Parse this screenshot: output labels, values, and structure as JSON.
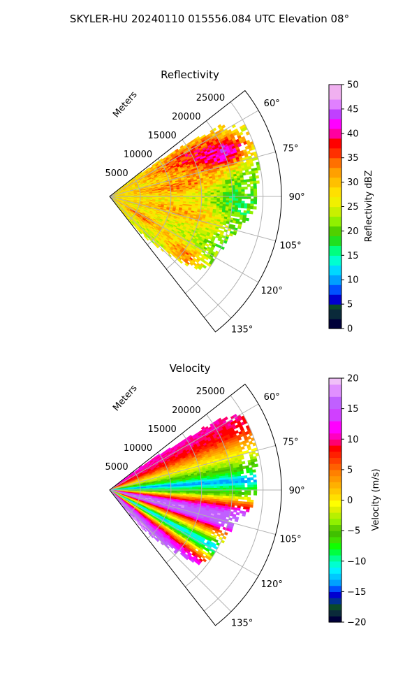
{
  "figure": {
    "suptitle": "SKYLER-HU  20240110  015556.084 UTC Elevation 08°"
  },
  "chart_data": [
    {
      "type": "heatmap",
      "projection": "polar-sector",
      "title": "Reflectivity",
      "radial_label": "Meters",
      "range_ticks": [
        5000,
        10000,
        15000,
        20000,
        25000
      ],
      "range_tick_labels": [
        "5000",
        "10000",
        "15000",
        "20000",
        "25000"
      ],
      "rlim": [
        0,
        28000
      ],
      "azimuth_range": [
        52,
        142
      ],
      "azimuth_ticks": [
        60,
        75,
        90,
        105,
        120,
        135
      ],
      "azimuth_tick_labels": [
        "60°",
        "75°",
        "90°",
        "105°",
        "120°",
        "135°"
      ],
      "grid": true,
      "colorbar": {
        "label": "Reflectivity dBZ",
        "range": [
          0,
          50
        ],
        "ticks": [
          0,
          5,
          10,
          15,
          20,
          25,
          30,
          35,
          40,
          45,
          50
        ],
        "tick_labels": [
          "0",
          "5",
          "10",
          "15",
          "20",
          "25",
          "30",
          "35",
          "40",
          "45",
          "50"
        ],
        "colors": [
          [
            0,
            "#00003a"
          ],
          [
            2,
            "#0a2a3a"
          ],
          [
            4,
            "#0a4a2a"
          ],
          [
            5,
            "#0000d0"
          ],
          [
            7,
            "#0050ff"
          ],
          [
            9,
            "#00a0ff"
          ],
          [
            11,
            "#00d8ff"
          ],
          [
            13,
            "#00ffd0"
          ],
          [
            15,
            "#00ff80"
          ],
          [
            17,
            "#20e020"
          ],
          [
            19,
            "#50d000"
          ],
          [
            21,
            "#90f000"
          ],
          [
            23,
            "#c8f000"
          ],
          [
            25,
            "#f0f000"
          ],
          [
            27,
            "#ffe000"
          ],
          [
            29,
            "#ffc000"
          ],
          [
            31,
            "#ffa000"
          ],
          [
            33,
            "#ff7000"
          ],
          [
            35,
            "#ff3000"
          ],
          [
            37,
            "#ff0000"
          ],
          [
            39,
            "#ff00a0"
          ],
          [
            41,
            "#ff00ff"
          ],
          [
            43,
            "#c040ff"
          ],
          [
            45,
            "#e080ff"
          ],
          [
            47,
            "#f0b0f0"
          ],
          [
            50,
            "#ffe0ff"
          ]
        ]
      },
      "field": {
        "max_range": [
          [
            52,
            0
          ],
          [
            57,
            20500
          ],
          [
            60,
            24500
          ],
          [
            64,
            25000
          ],
          [
            68,
            25000
          ],
          [
            72,
            25000
          ],
          [
            76,
            24800
          ],
          [
            80,
            24500
          ],
          [
            85,
            24000
          ],
          [
            90,
            24000
          ],
          [
            95,
            23500
          ],
          [
            100,
            22500
          ],
          [
            105,
            21500
          ],
          [
            110,
            20500
          ],
          [
            115,
            20000
          ],
          [
            120,
            20000
          ],
          [
            125,
            19500
          ],
          [
            130,
            18500
          ],
          [
            135,
            13000
          ],
          [
            140,
            8000
          ],
          [
            142,
            0
          ]
        ],
        "base_value": 27,
        "features": [
          {
            "azimuth": 62,
            "range": 14000,
            "amplitude": 10,
            "azimuth_width": 9,
            "range_width": 9000
          },
          {
            "azimuth": 70,
            "range": 21000,
            "amplitude": 13,
            "azimuth_width": 6,
            "range_width": 4000
          },
          {
            "azimuth": 70,
            "range": 17000,
            "amplitude": 7,
            "azimuth_width": 10,
            "range_width": 6000
          },
          {
            "azimuth": 82,
            "range": 11000,
            "amplitude": 8,
            "azimuth_width": 7,
            "range_width": 8000
          },
          {
            "azimuth": 102,
            "range": 13000,
            "amplitude": 7,
            "azimuth_width": 8,
            "range_width": 9000
          },
          {
            "azimuth": 122,
            "range": 6000,
            "amplitude": 8,
            "azimuth_width": 6,
            "range_width": 5000
          },
          {
            "azimuth": 128,
            "range": 15500,
            "amplitude": 10,
            "azimuth_width": 6,
            "range_width": 4000
          },
          {
            "azimuth": 95,
            "range": 20500,
            "amplitude": -5,
            "azimuth_width": 14,
            "range_width": 3500
          }
        ],
        "range_trend": -0.00025,
        "noise": 7
      }
    },
    {
      "type": "heatmap",
      "projection": "polar-sector",
      "title": "Velocity",
      "radial_label": "Meters",
      "range_ticks": [
        5000,
        10000,
        15000,
        20000,
        25000
      ],
      "range_tick_labels": [
        "5000",
        "10000",
        "15000",
        "20000",
        "25000"
      ],
      "rlim": [
        0,
        28000
      ],
      "azimuth_range": [
        52,
        142
      ],
      "azimuth_ticks": [
        60,
        75,
        90,
        105,
        120,
        135
      ],
      "azimuth_tick_labels": [
        "60°",
        "75°",
        "90°",
        "105°",
        "120°",
        "135°"
      ],
      "grid": true,
      "colorbar": {
        "label": "Velocity (m/s)",
        "range": [
          -20,
          20
        ],
        "ticks": [
          -20,
          -15,
          -10,
          -5,
          0,
          5,
          10,
          15,
          20
        ],
        "tick_labels": [
          "−20",
          "−15",
          "−10",
          "−5",
          "0",
          "5",
          "10",
          "15",
          "20"
        ],
        "colors": [
          [
            -20,
            "#00003a"
          ],
          [
            -19,
            "#0a2a3a"
          ],
          [
            -18,
            "#0a4a2a"
          ],
          [
            -17,
            "#003090"
          ],
          [
            -16,
            "#0000d0"
          ],
          [
            -15,
            "#0050ff"
          ],
          [
            -14,
            "#00a0ff"
          ],
          [
            -13,
            "#00c8ff"
          ],
          [
            -12,
            "#00f0ff"
          ],
          [
            -11,
            "#00ffd0"
          ],
          [
            -10,
            "#00ff90"
          ],
          [
            -9,
            "#00ff40"
          ],
          [
            -8,
            "#10ff00"
          ],
          [
            -7,
            "#40e000"
          ],
          [
            -6,
            "#40c000"
          ],
          [
            -5,
            "#60d000"
          ],
          [
            -4,
            "#90f000"
          ],
          [
            -3,
            "#b8f000"
          ],
          [
            -2,
            "#e0f000"
          ],
          [
            -1,
            "#ffff00"
          ],
          [
            0,
            "#ffe000"
          ],
          [
            1,
            "#ffc800"
          ],
          [
            2,
            "#ffb000"
          ],
          [
            3,
            "#ff9800"
          ],
          [
            4,
            "#ff8000"
          ],
          [
            5,
            "#ff6000"
          ],
          [
            6,
            "#ff4000"
          ],
          [
            7,
            "#ff2000"
          ],
          [
            8,
            "#ff0000"
          ],
          [
            9,
            "#ff0070"
          ],
          [
            10,
            "#ff00c0"
          ],
          [
            11,
            "#ff00ff"
          ],
          [
            13,
            "#d040ff"
          ],
          [
            15,
            "#c060ff"
          ],
          [
            17,
            "#e090ff"
          ],
          [
            19,
            "#f0c0f8"
          ],
          [
            20,
            "#ffe0ff"
          ]
        ]
      },
      "field": {
        "max_range": [
          [
            52,
            0
          ],
          [
            57,
            20500
          ],
          [
            60,
            24500
          ],
          [
            64,
            25000
          ],
          [
            68,
            25000
          ],
          [
            72,
            25000
          ],
          [
            76,
            24800
          ],
          [
            80,
            24500
          ],
          [
            85,
            24000
          ],
          [
            90,
            24000
          ],
          [
            95,
            23500
          ],
          [
            100,
            22500
          ],
          [
            105,
            21500
          ],
          [
            110,
            20500
          ],
          [
            115,
            20000
          ],
          [
            120,
            20000
          ],
          [
            125,
            19500
          ],
          [
            130,
            18500
          ],
          [
            135,
            13000
          ],
          [
            140,
            8000
          ],
          [
            142,
            0
          ]
        ],
        "velocity_profile": [
          [
            52,
            11
          ],
          [
            60,
            10
          ],
          [
            66,
            8
          ],
          [
            72,
            2
          ],
          [
            78,
            -3
          ],
          [
            83,
            -8
          ],
          [
            86,
            -14
          ],
          [
            88,
            -10
          ],
          [
            92,
            -5
          ],
          [
            96,
            5
          ],
          [
            100,
            14
          ],
          [
            103,
            17
          ],
          [
            107,
            15
          ],
          [
            111,
            5
          ],
          [
            115,
            -3
          ],
          [
            118,
            -12
          ],
          [
            121,
            -9
          ],
          [
            124,
            1
          ],
          [
            128,
            10
          ],
          [
            133,
            16
          ],
          [
            138,
            17
          ],
          [
            142,
            17
          ]
        ],
        "noise": 1.5
      }
    }
  ]
}
